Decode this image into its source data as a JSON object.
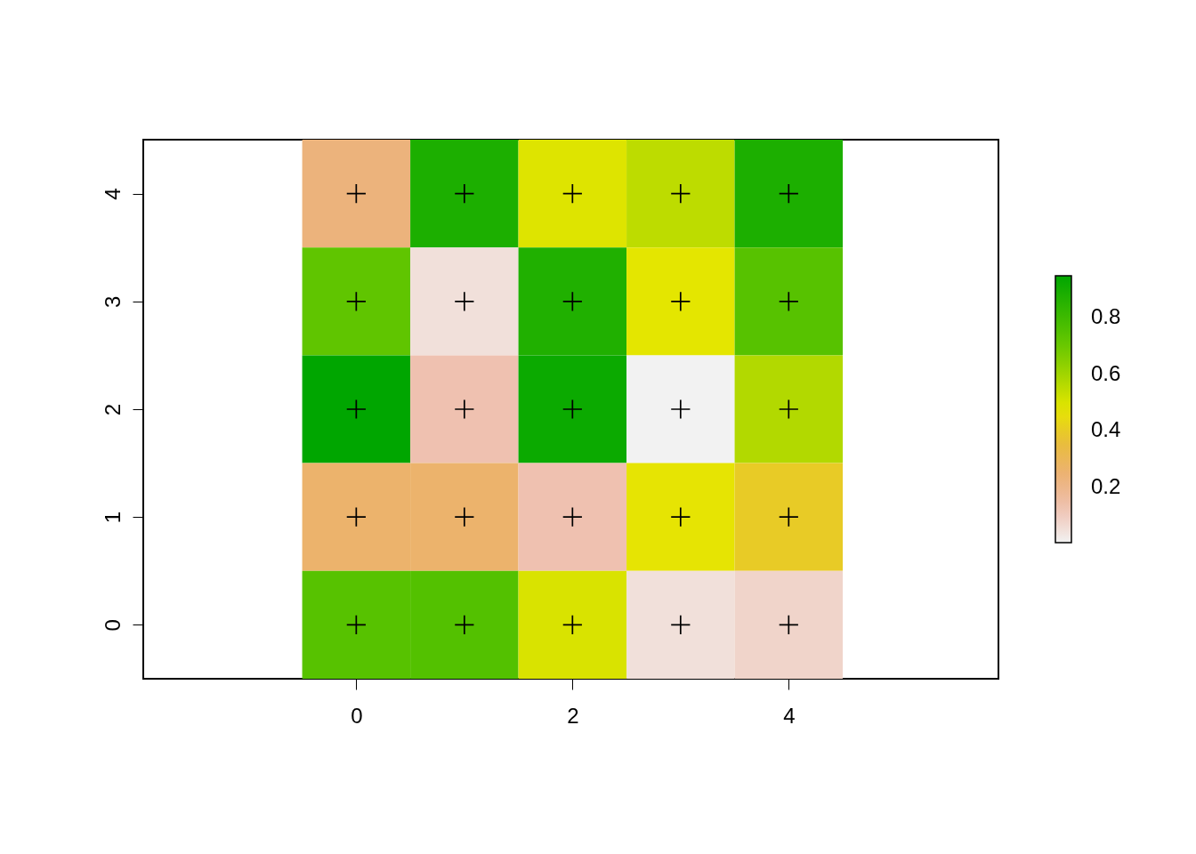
{
  "chart_data": {
    "type": "heatmap",
    "x": [
      0,
      1,
      2,
      3,
      4
    ],
    "cells": [
      [
        0.23,
        0.88,
        0.49,
        0.55,
        0.88
      ],
      [
        0.72,
        0.05,
        0.87,
        0.48,
        0.74
      ],
      [
        0.947,
        0.13,
        0.92,
        0.006,
        0.57
      ],
      [
        0.26,
        0.26,
        0.13,
        0.47,
        0.4
      ],
      [
        0.74,
        0.75,
        0.5,
        0.05,
        0.08
      ]
    ],
    "series": [
      {
        "type": "scatter",
        "x": [
          0,
          1,
          2,
          3,
          4,
          0,
          1,
          2,
          3,
          4,
          0,
          1,
          2,
          3,
          4,
          0,
          1,
          2,
          3,
          4,
          0,
          1,
          2,
          3,
          4
        ],
        "values": [
          4,
          4,
          4,
          4,
          4,
          3,
          3,
          3,
          3,
          3,
          2,
          2,
          2,
          2,
          2,
          1,
          1,
          1,
          1,
          1,
          0,
          0,
          0,
          0,
          0
        ],
        "color": "#000000"
      }
    ],
    "xlim": [
      -1.97,
      5.94
    ],
    "xticks": [
      0,
      2,
      4
    ],
    "ylim": [
      -0.5,
      4.5
    ],
    "yticks": [
      0,
      1,
      2,
      3,
      4
    ],
    "clim": [
      0.006,
      0.947
    ],
    "cticks": [
      0.2,
      0.4,
      0.6,
      0.8
    ],
    "marker": "cross",
    "grid": false
  }
}
